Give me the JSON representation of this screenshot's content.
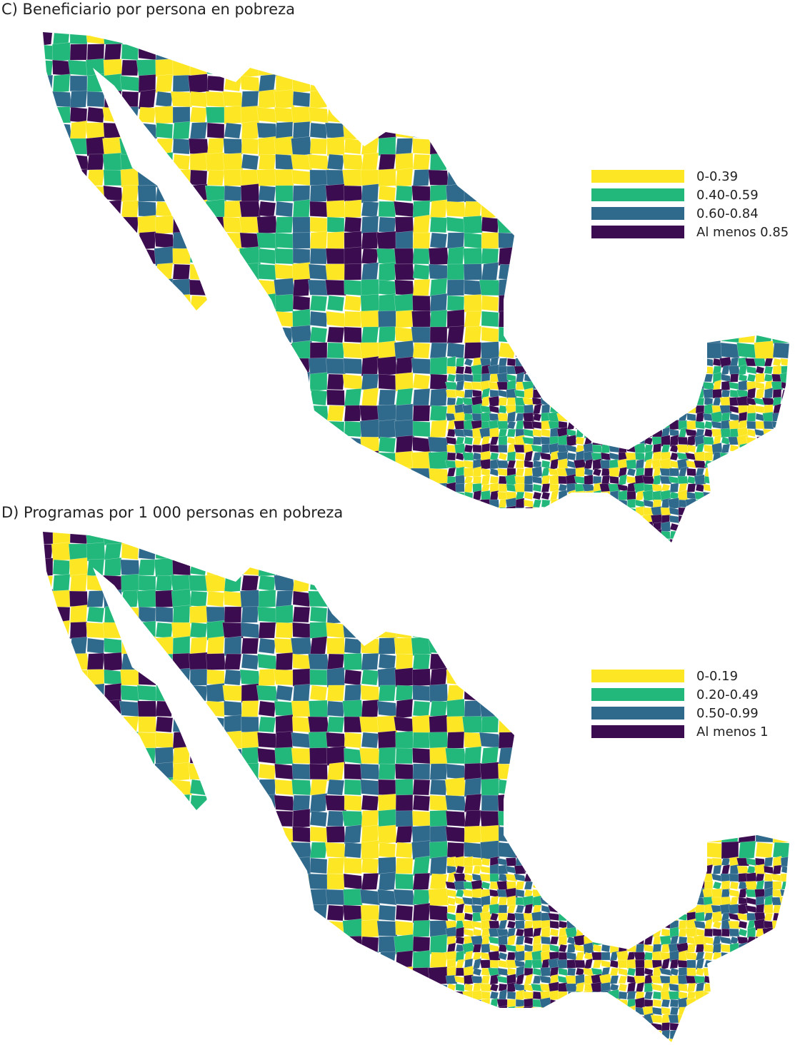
{
  "panels": [
    {
      "title": "C) Beneficiario por persona en pobreza",
      "legend": [
        {
          "label": "0-0.39",
          "color": "#fde725"
        },
        {
          "label": "0.40-0.59",
          "color": "#22b77b"
        },
        {
          "label": "0.60-0.84",
          "color": "#2f6a8d"
        },
        {
          "label": "Al menos 0.85",
          "color": "#3b0c4f"
        }
      ]
    },
    {
      "title": "D) Programas por 1 000 personas en pobreza",
      "legend": [
        {
          "label": "0-0.19",
          "color": "#fde725"
        },
        {
          "label": "0.20-0.49",
          "color": "#22b77b"
        },
        {
          "label": "0.50-0.99",
          "color": "#2f6a8d"
        },
        {
          "label": "Al menos 1",
          "color": "#3b0c4f"
        }
      ]
    }
  ]
}
